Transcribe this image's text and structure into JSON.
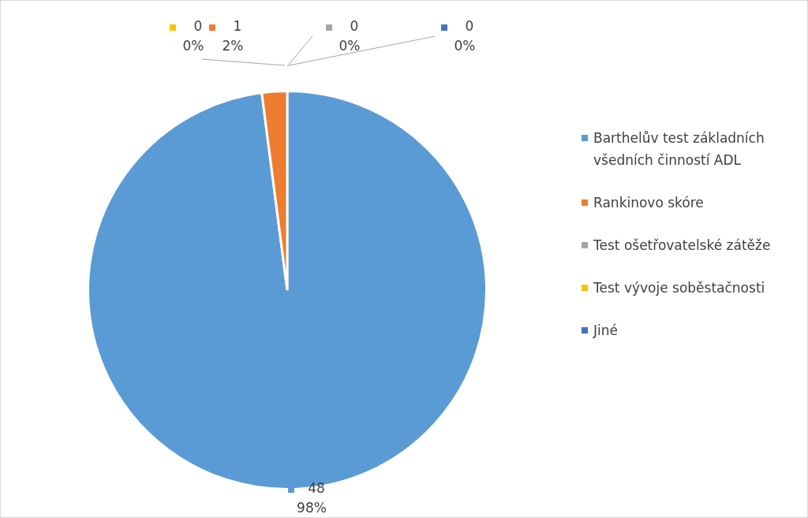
{
  "chart_data": {
    "type": "pie",
    "categories": [
      "Barthelův test základních všedních činností ADL",
      "Rankinovo skóre",
      "Test ošetřovatelské zátěže",
      "Test vývoje soběstačnosti",
      "Jiné"
    ],
    "values": [
      48,
      1,
      0,
      0,
      0
    ],
    "colors": [
      "#5b9bd5",
      "#ed7d31",
      "#a5a5a5",
      "#ffc000",
      "#4472c4"
    ],
    "data_labels": true,
    "value_labels": [
      "48\n98%",
      "1\n2%",
      "0\n0%",
      "0\n0%",
      "0\n0%"
    ],
    "legend": "right"
  }
}
